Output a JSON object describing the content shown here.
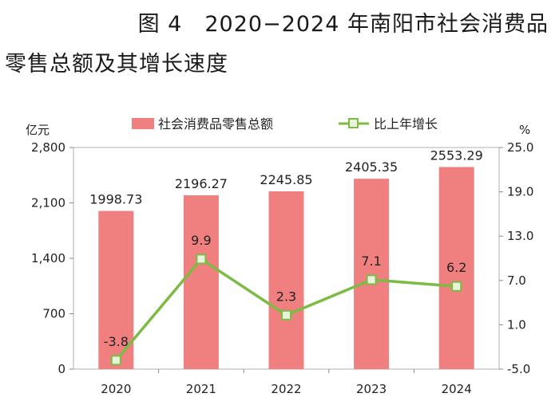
{
  "title": {
    "line1": "图 4　2020−2024 年南阳市社会消费品",
    "line2": "零售总额及其增长速度"
  },
  "chart_data": {
    "type": "bar",
    "categories": [
      "2020",
      "2021",
      "2022",
      "2023",
      "2024"
    ],
    "series": [
      {
        "name": "社会消费品零售总额",
        "type": "bar",
        "axis": "left",
        "color": "#f08080",
        "values": [
          1998.73,
          2196.27,
          2245.85,
          2405.35,
          2553.29
        ],
        "labels": [
          "1998.73",
          "2196.27",
          "2245.85",
          "2405.35",
          "2553.29"
        ]
      },
      {
        "name": "比上年增长",
        "type": "line",
        "axis": "right",
        "color": "#7dbb45",
        "values": [
          -3.8,
          9.9,
          2.3,
          7.1,
          6.2
        ],
        "labels": [
          "-3.8",
          "9.9",
          "2.3",
          "7.1",
          "6.2"
        ]
      }
    ],
    "y_left": {
      "unit": "亿元",
      "ylim": [
        0,
        2800
      ],
      "ticks": [
        "0",
        "700",
        "1,400",
        "2,100",
        "2,800"
      ]
    },
    "y_right": {
      "unit": "%",
      "ylim": [
        -5,
        25
      ],
      "ticks": [
        "-5.0",
        "1.0",
        "7.0",
        "13.0",
        "19.0",
        "25.0"
      ]
    },
    "legend_position": "top-center",
    "grid": false
  }
}
